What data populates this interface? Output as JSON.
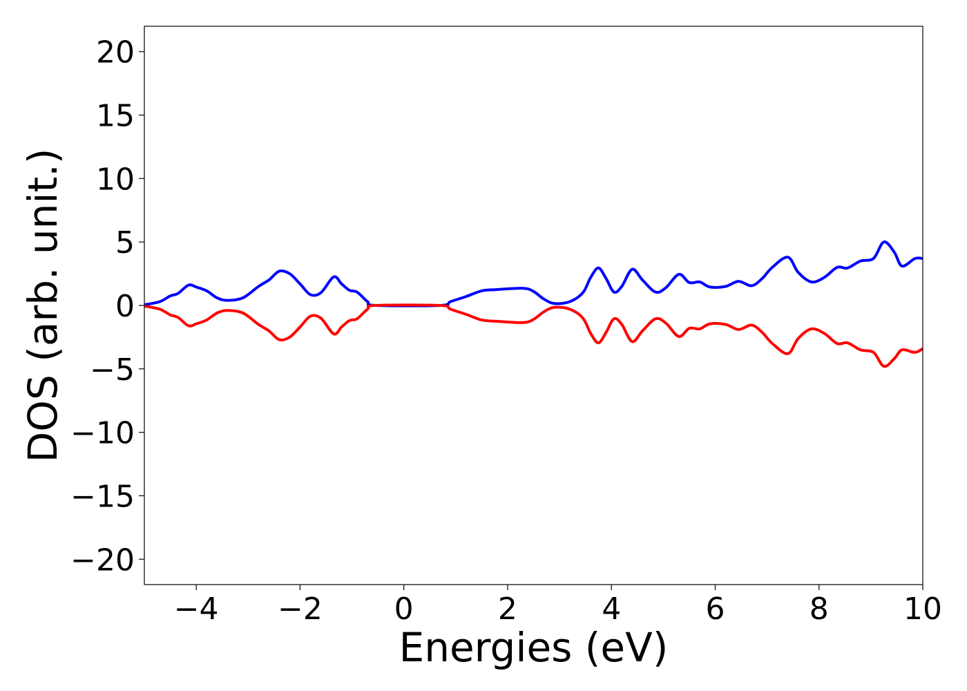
{
  "chart_data": {
    "type": "line",
    "title": "",
    "xlabel": "Energies (eV)",
    "ylabel": "DOS (arb. unit.)",
    "xlim": [
      -5,
      10
    ],
    "ylim": [
      -22,
      22
    ],
    "x_ticks": [
      -4,
      -2,
      0,
      2,
      4,
      6,
      8,
      10
    ],
    "y_ticks": [
      -20,
      -15,
      -10,
      -5,
      0,
      5,
      10,
      15,
      20
    ],
    "x_tick_labels": [
      "−4",
      "−2",
      "0",
      "2",
      "4",
      "6",
      "8",
      "10"
    ],
    "y_tick_labels": [
      "−20",
      "−15",
      "−10",
      "−5",
      "0",
      "5",
      "10",
      "15",
      "20"
    ],
    "grid": false,
    "series": [
      {
        "color": "#0000ff",
        "points": [
          [
            -5.0,
            0.05
          ],
          [
            -4.7,
            0.3
          ],
          [
            -4.5,
            0.75
          ],
          [
            -4.35,
            0.95
          ],
          [
            -4.15,
            1.6
          ],
          [
            -4.0,
            1.45
          ],
          [
            -3.8,
            1.15
          ],
          [
            -3.6,
            0.6
          ],
          [
            -3.4,
            0.4
          ],
          [
            -3.1,
            0.6
          ],
          [
            -2.8,
            1.5
          ],
          [
            -2.6,
            2.0
          ],
          [
            -2.4,
            2.7
          ],
          [
            -2.2,
            2.5
          ],
          [
            -2.0,
            1.7
          ],
          [
            -1.8,
            0.85
          ],
          [
            -1.6,
            1.0
          ],
          [
            -1.35,
            2.25
          ],
          [
            -1.2,
            1.7
          ],
          [
            -1.05,
            1.2
          ],
          [
            -0.9,
            1.05
          ],
          [
            -0.7,
            0.3
          ],
          [
            -0.55,
            0.0
          ],
          [
            0.7,
            0.0
          ],
          [
            0.9,
            0.3
          ],
          [
            1.2,
            0.7
          ],
          [
            1.5,
            1.15
          ],
          [
            1.8,
            1.25
          ],
          [
            2.3,
            1.35
          ],
          [
            2.5,
            1.1
          ],
          [
            2.7,
            0.5
          ],
          [
            2.9,
            0.15
          ],
          [
            3.2,
            0.3
          ],
          [
            3.45,
            1.0
          ],
          [
            3.6,
            2.2
          ],
          [
            3.75,
            2.95
          ],
          [
            3.9,
            2.1
          ],
          [
            4.05,
            1.05
          ],
          [
            4.2,
            1.5
          ],
          [
            4.4,
            2.85
          ],
          [
            4.6,
            2.0
          ],
          [
            4.85,
            1.05
          ],
          [
            5.05,
            1.4
          ],
          [
            5.3,
            2.45
          ],
          [
            5.5,
            1.8
          ],
          [
            5.7,
            1.85
          ],
          [
            5.9,
            1.45
          ],
          [
            6.2,
            1.5
          ],
          [
            6.45,
            1.9
          ],
          [
            6.7,
            1.55
          ],
          [
            6.9,
            2.1
          ],
          [
            7.1,
            3.0
          ],
          [
            7.4,
            3.8
          ],
          [
            7.6,
            2.6
          ],
          [
            7.85,
            1.85
          ],
          [
            8.1,
            2.2
          ],
          [
            8.35,
            3.0
          ],
          [
            8.55,
            2.95
          ],
          [
            8.8,
            3.5
          ],
          [
            9.05,
            3.7
          ],
          [
            9.25,
            5.0
          ],
          [
            9.45,
            4.2
          ],
          [
            9.6,
            3.1
          ],
          [
            9.85,
            3.7
          ],
          [
            10.0,
            3.7
          ]
        ]
      },
      {
        "color": "#ff0000",
        "points": [
          [
            -5.0,
            -0.05
          ],
          [
            -4.7,
            -0.3
          ],
          [
            -4.5,
            -0.75
          ],
          [
            -4.35,
            -0.95
          ],
          [
            -4.15,
            -1.6
          ],
          [
            -4.0,
            -1.45
          ],
          [
            -3.8,
            -1.15
          ],
          [
            -3.6,
            -0.6
          ],
          [
            -3.4,
            -0.4
          ],
          [
            -3.1,
            -0.6
          ],
          [
            -2.8,
            -1.5
          ],
          [
            -2.6,
            -2.0
          ],
          [
            -2.4,
            -2.7
          ],
          [
            -2.2,
            -2.5
          ],
          [
            -2.0,
            -1.7
          ],
          [
            -1.8,
            -0.85
          ],
          [
            -1.6,
            -1.0
          ],
          [
            -1.35,
            -2.25
          ],
          [
            -1.2,
            -1.7
          ],
          [
            -1.05,
            -1.2
          ],
          [
            -0.9,
            -1.05
          ],
          [
            -0.7,
            -0.3
          ],
          [
            -0.55,
            0.0
          ],
          [
            0.7,
            0.0
          ],
          [
            0.9,
            -0.3
          ],
          [
            1.2,
            -0.7
          ],
          [
            1.5,
            -1.15
          ],
          [
            1.8,
            -1.25
          ],
          [
            2.3,
            -1.35
          ],
          [
            2.5,
            -1.1
          ],
          [
            2.7,
            -0.5
          ],
          [
            2.9,
            -0.15
          ],
          [
            3.2,
            -0.3
          ],
          [
            3.45,
            -1.0
          ],
          [
            3.6,
            -2.2
          ],
          [
            3.75,
            -2.95
          ],
          [
            3.9,
            -2.1
          ],
          [
            4.05,
            -1.05
          ],
          [
            4.2,
            -1.5
          ],
          [
            4.4,
            -2.85
          ],
          [
            4.6,
            -2.0
          ],
          [
            4.85,
            -1.05
          ],
          [
            5.05,
            -1.4
          ],
          [
            5.3,
            -2.45
          ],
          [
            5.5,
            -1.8
          ],
          [
            5.7,
            -1.85
          ],
          [
            5.9,
            -1.45
          ],
          [
            6.2,
            -1.5
          ],
          [
            6.45,
            -1.9
          ],
          [
            6.7,
            -1.55
          ],
          [
            6.9,
            -2.1
          ],
          [
            7.1,
            -3.0
          ],
          [
            7.4,
            -3.8
          ],
          [
            7.6,
            -2.6
          ],
          [
            7.85,
            -1.85
          ],
          [
            8.1,
            -2.2
          ],
          [
            8.35,
            -3.0
          ],
          [
            8.55,
            -2.95
          ],
          [
            8.8,
            -3.5
          ],
          [
            9.05,
            -3.7
          ],
          [
            9.25,
            -4.8
          ],
          [
            9.45,
            -4.2
          ],
          [
            9.6,
            -3.5
          ],
          [
            9.85,
            -3.7
          ],
          [
            10.0,
            -3.4
          ]
        ]
      }
    ]
  }
}
